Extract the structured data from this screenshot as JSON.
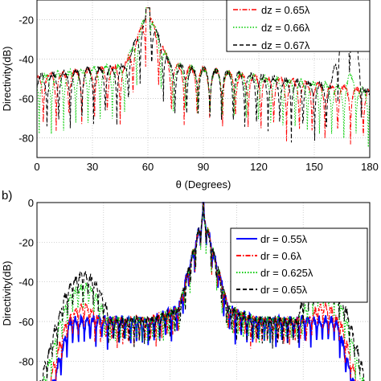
{
  "chart_data": [
    {
      "type": "line",
      "panel_label": "",
      "xlabel": "θ (Degrees)",
      "ylabel": "Directivity(dB)",
      "xlim": [
        0,
        180
      ],
      "ylim": [
        -90,
        -10
      ],
      "x_ticks": [
        "0",
        "30",
        "60",
        "90",
        "120",
        "150",
        "180"
      ],
      "y_ticks": [
        "-20",
        "-40",
        "-60",
        "-80"
      ],
      "grid": true,
      "legend_position": "top-right",
      "series": [
        {
          "name": "dz = 0.65λ",
          "color": "#ff0000",
          "dash": "dashdot",
          "main_lobe_deg": 60,
          "main_lobe_db": -14,
          "sidelobe_floor_db": -60,
          "end_lobe_deg": 170,
          "end_lobe_db": -60
        },
        {
          "name": "dz = 0.66λ",
          "color": "#00cc00",
          "dash": "dotted",
          "main_lobe_deg": 60,
          "main_lobe_db": -14,
          "sidelobe_floor_db": -60,
          "end_lobe_deg": 170,
          "end_lobe_db": -47
        },
        {
          "name": "dz = 0.67λ",
          "color": "#000000",
          "dash": "dashed",
          "main_lobe_deg": 60,
          "main_lobe_db": -14,
          "sidelobe_floor_db": -60,
          "end_lobe_deg": 168,
          "end_lobe_db": -22
        }
      ]
    },
    {
      "type": "line",
      "panel_label": "b)",
      "xlabel": "",
      "ylabel": "Directivity(dB)",
      "xlim": [
        -1,
        1
      ],
      "ylim": [
        -90,
        0
      ],
      "y_ticks": [
        "0",
        "-20",
        "-40",
        "-60",
        "-80"
      ],
      "grid": true,
      "legend_position": "top-right",
      "series": [
        {
          "name": "dr = 0.55λ",
          "color": "#0000ff",
          "dash": "solid",
          "main_lobe_db": 0,
          "side_peak_db": -57
        },
        {
          "name": "dr = 0.6λ",
          "color": "#ff0000",
          "dash": "dashdot",
          "main_lobe_db": 0,
          "side_peak_db": -50
        },
        {
          "name": "dr = 0.625λ",
          "color": "#00cc00",
          "dash": "dotted",
          "main_lobe_db": 0,
          "side_peak_db": -40
        },
        {
          "name": "dr = 0.65λ",
          "color": "#000000",
          "dash": "dashed",
          "main_lobe_db": 0,
          "side_peak_db": -34
        }
      ]
    }
  ]
}
